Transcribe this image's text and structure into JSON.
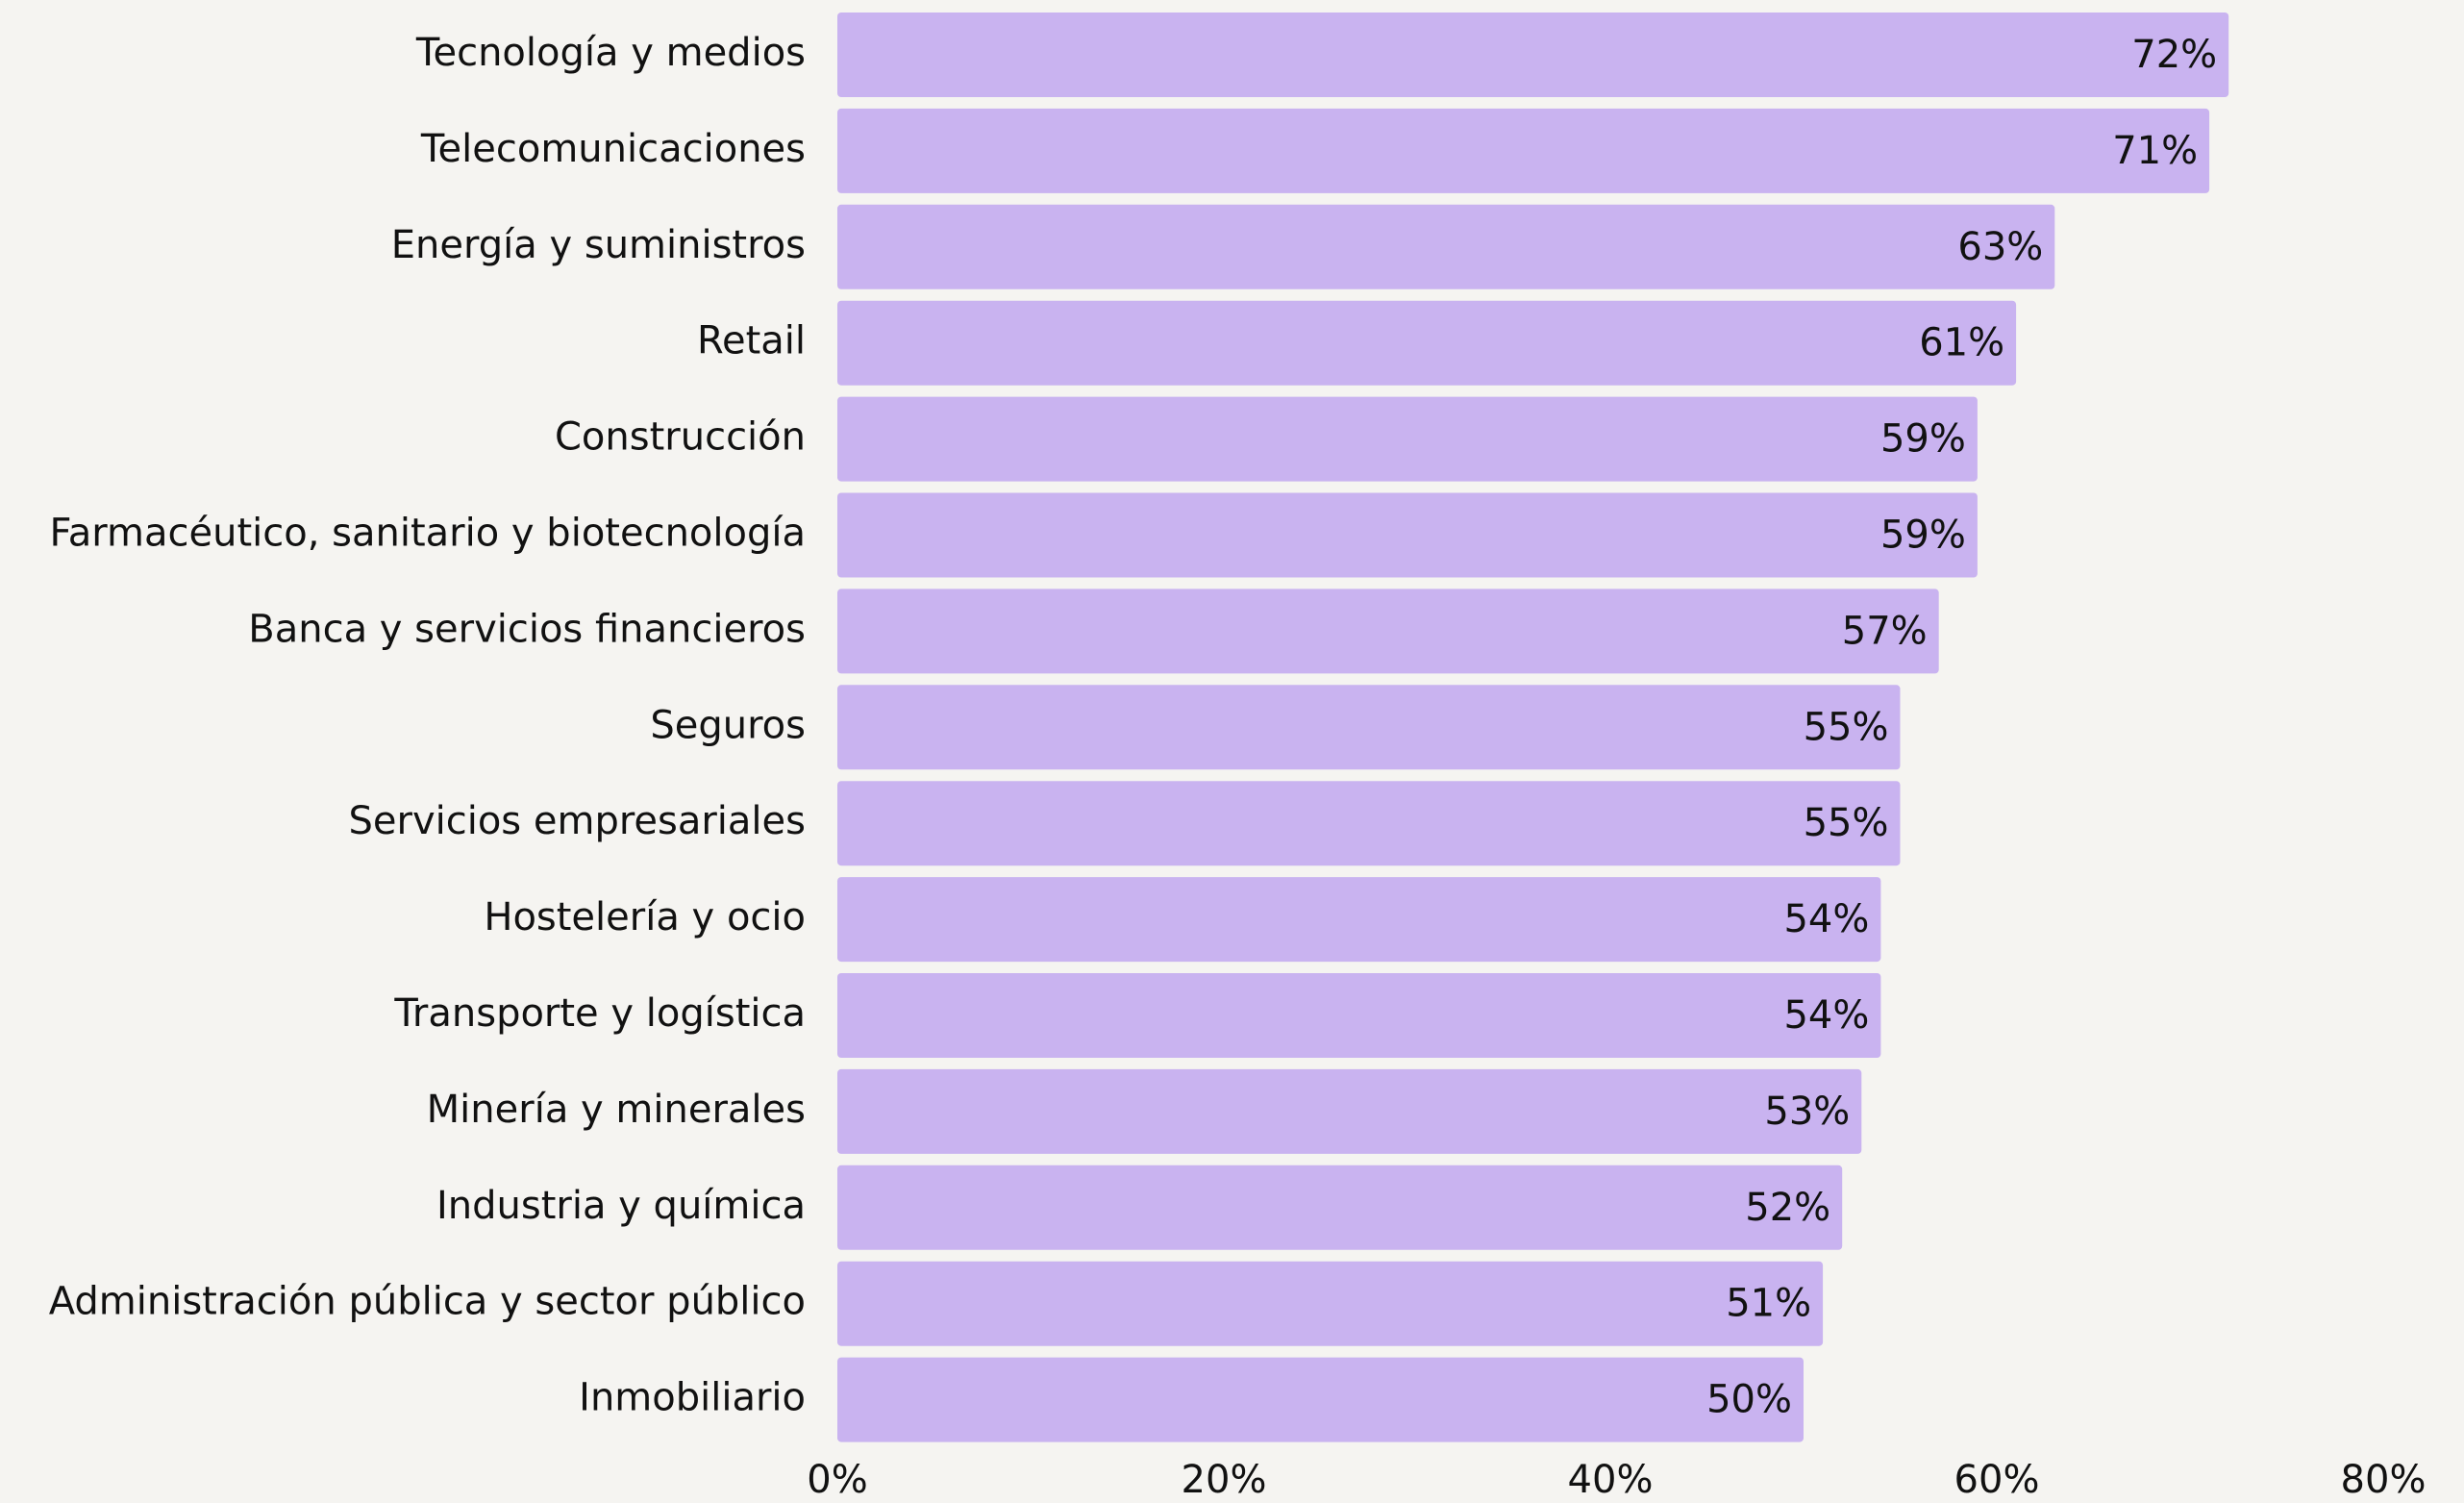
{
  "chart_data": {
    "type": "barh",
    "categories": [
      "Tecnología y medios",
      "Telecomunicaciones",
      "Energía y suministros",
      "Retail",
      "Construcción",
      "Farmacéutico, sanitario y biotecnología",
      "Banca y servicios financieros",
      "Seguros",
      "Servicios empresariales",
      "Hostelería y ocio",
      "Transporte y logística",
      "Minería y minerales",
      "Industria y química",
      "Administración pública y sector público",
      "Inmobiliario"
    ],
    "values": [
      72,
      71,
      63,
      61,
      59,
      59,
      57,
      55,
      55,
      54,
      54,
      53,
      52,
      51,
      50
    ],
    "value_labels": [
      "72%",
      "71%",
      "63%",
      "61%",
      "59%",
      "59%",
      "57%",
      "55%",
      "55%",
      "54%",
      "54%",
      "53%",
      "52%",
      "51%",
      "50%"
    ],
    "color": "#c9b3f0",
    "xlim": [
      0,
      80
    ],
    "xticks": [
      {
        "value": 0,
        "label": "0%"
      },
      {
        "value": 20,
        "label": "20%"
      },
      {
        "value": 40,
        "label": "40%"
      },
      {
        "value": 60,
        "label": "60%"
      },
      {
        "value": 80,
        "label": "80%"
      }
    ],
    "grid": false
  }
}
